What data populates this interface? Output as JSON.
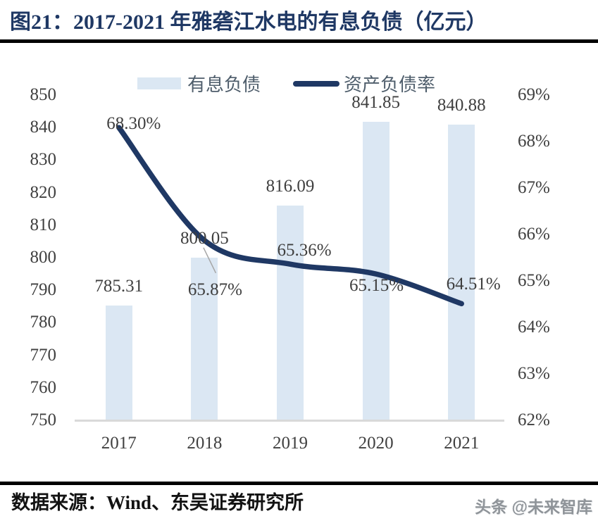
{
  "page": {
    "title": "图21：2017-2021 年雅砻江水电的有息负债（亿元）",
    "source": "数据来源：Wind、东吴证券研究所",
    "watermark": "头条 @未来智库"
  },
  "legend": {
    "bar_label": "有息负债",
    "line_label": "资产负债率"
  },
  "colors": {
    "title": "#1F3864",
    "bar_fill": "#DBE7F3",
    "line_stroke": "#1F3864",
    "axis_text": "#404040",
    "data_label_text": "#3F3F3F",
    "legend_text": "#4E5D6B",
    "axis_line": "#D9D9D9",
    "divider": "#000000",
    "leader_line": "#A6A6A6"
  },
  "chart_data": {
    "type": "bar",
    "subtype": "bar+line combo, secondary right axis, smoothed line",
    "title": "2017-2021 年雅砻江水电的有息负债（亿元）",
    "categories": [
      "2017",
      "2018",
      "2019",
      "2020",
      "2021"
    ],
    "series": [
      {
        "name": "有息负债",
        "type": "bar",
        "axis": "left",
        "values": [
          785.31,
          800.05,
          816.09,
          841.85,
          840.88
        ],
        "labels": [
          "785.31",
          "800.05",
          "816.09",
          "841.85",
          "840.88"
        ]
      },
      {
        "name": "资产负债率",
        "type": "line",
        "axis": "right",
        "values": [
          68.3,
          65.87,
          65.36,
          65.15,
          64.51
        ],
        "labels": [
          "68.30%",
          "65.87%",
          "65.36%",
          "65.15%",
          "64.51%"
        ]
      }
    ],
    "left_axis": {
      "min": 750,
      "max": 850,
      "step": 10,
      "tick_labels": [
        "850",
        "840",
        "830",
        "820",
        "810",
        "800",
        "790",
        "780",
        "770",
        "760",
        "750"
      ]
    },
    "right_axis": {
      "min": 62,
      "max": 69,
      "step": 1,
      "tick_labels": [
        "69%",
        "68%",
        "67%",
        "66%",
        "65%",
        "64%",
        "63%",
        "62%"
      ]
    },
    "grid": false,
    "legend_position": "top"
  }
}
